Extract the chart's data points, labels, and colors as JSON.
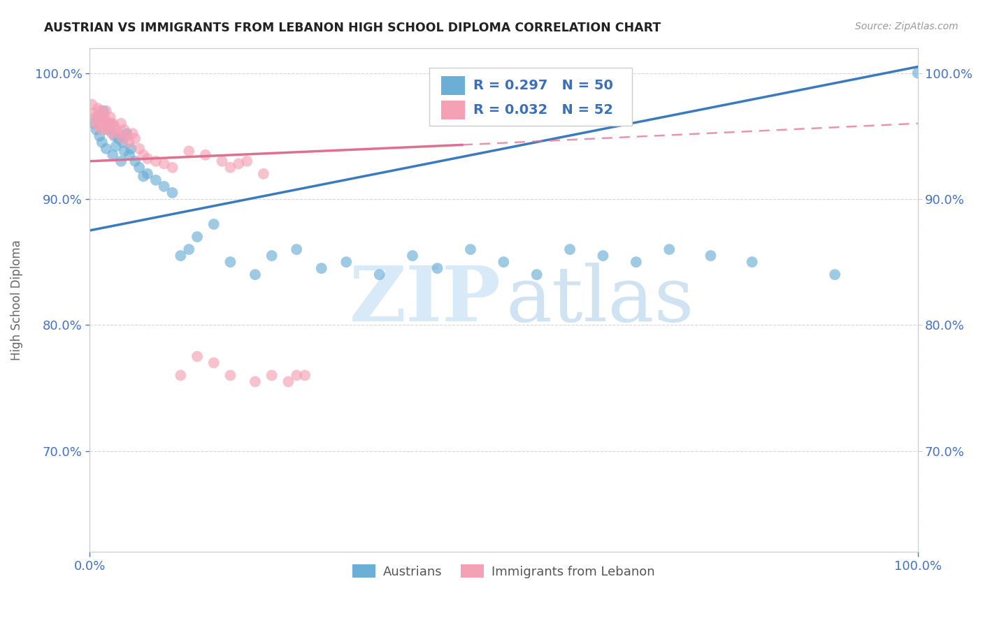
{
  "title": "AUSTRIAN VS IMMIGRANTS FROM LEBANON HIGH SCHOOL DIPLOMA CORRELATION CHART",
  "source": "Source: ZipAtlas.com",
  "ylabel": "High School Diploma",
  "blue_R": "R = 0.297",
  "blue_N": "N = 50",
  "pink_R": "R = 0.032",
  "pink_N": "N = 52",
  "blue_color": "#6baed6",
  "pink_color": "#f4a0b5",
  "trend_blue": "#3a7abf",
  "trend_pink": "#e07090",
  "legend_labels": [
    "Austrians",
    "Immigrants from Lebanon"
  ],
  "xlim": [
    0.0,
    1.0
  ],
  "ylim": [
    0.62,
    1.02
  ],
  "yticks": [
    0.7,
    0.8,
    0.9,
    1.0
  ],
  "ytick_labels": [
    "70.0%",
    "80.0%",
    "90.0%",
    "100.0%"
  ],
  "blue_scatter_x": [
    0.005,
    0.008,
    0.01,
    0.012,
    0.015,
    0.017,
    0.02,
    0.022,
    0.025,
    0.028,
    0.03,
    0.032,
    0.035,
    0.038,
    0.04,
    0.042,
    0.045,
    0.048,
    0.05,
    0.055,
    0.06,
    0.065,
    0.07,
    0.08,
    0.09,
    0.1,
    0.11,
    0.12,
    0.13,
    0.15,
    0.17,
    0.2,
    0.22,
    0.25,
    0.28,
    0.31,
    0.35,
    0.39,
    0.42,
    0.46,
    0.5,
    0.54,
    0.58,
    0.62,
    0.66,
    0.7,
    0.75,
    0.8,
    0.9,
    1.0
  ],
  "blue_scatter_y": [
    0.96,
    0.955,
    0.965,
    0.95,
    0.945,
    0.97,
    0.94,
    0.955,
    0.96,
    0.935,
    0.95,
    0.942,
    0.948,
    0.93,
    0.945,
    0.938,
    0.952,
    0.935,
    0.94,
    0.93,
    0.925,
    0.918,
    0.92,
    0.915,
    0.91,
    0.905,
    0.855,
    0.86,
    0.87,
    0.88,
    0.85,
    0.84,
    0.855,
    0.86,
    0.845,
    0.85,
    0.84,
    0.855,
    0.845,
    0.86,
    0.85,
    0.84,
    0.86,
    0.855,
    0.85,
    0.86,
    0.855,
    0.85,
    0.84,
    1.0
  ],
  "pink_scatter_x": [
    0.003,
    0.005,
    0.007,
    0.008,
    0.01,
    0.01,
    0.012,
    0.013,
    0.015,
    0.015,
    0.017,
    0.018,
    0.02,
    0.02,
    0.022,
    0.023,
    0.025,
    0.025,
    0.027,
    0.028,
    0.03,
    0.032,
    0.035,
    0.038,
    0.04,
    0.042,
    0.045,
    0.048,
    0.052,
    0.055,
    0.06,
    0.065,
    0.07,
    0.08,
    0.09,
    0.1,
    0.11,
    0.13,
    0.15,
    0.17,
    0.2,
    0.22,
    0.25,
    0.16,
    0.18,
    0.14,
    0.12,
    0.17,
    0.19,
    0.21,
    0.24,
    0.26
  ],
  "pink_scatter_y": [
    0.975,
    0.968,
    0.965,
    0.96,
    0.972,
    0.958,
    0.965,
    0.97,
    0.96,
    0.955,
    0.965,
    0.958,
    0.962,
    0.97,
    0.955,
    0.96,
    0.958,
    0.965,
    0.952,
    0.96,
    0.958,
    0.955,
    0.952,
    0.96,
    0.948,
    0.955,
    0.95,
    0.945,
    0.952,
    0.948,
    0.94,
    0.935,
    0.932,
    0.93,
    0.928,
    0.925,
    0.76,
    0.775,
    0.77,
    0.76,
    0.755,
    0.76,
    0.76,
    0.93,
    0.928,
    0.935,
    0.938,
    0.925,
    0.93,
    0.92,
    0.755,
    0.76
  ]
}
